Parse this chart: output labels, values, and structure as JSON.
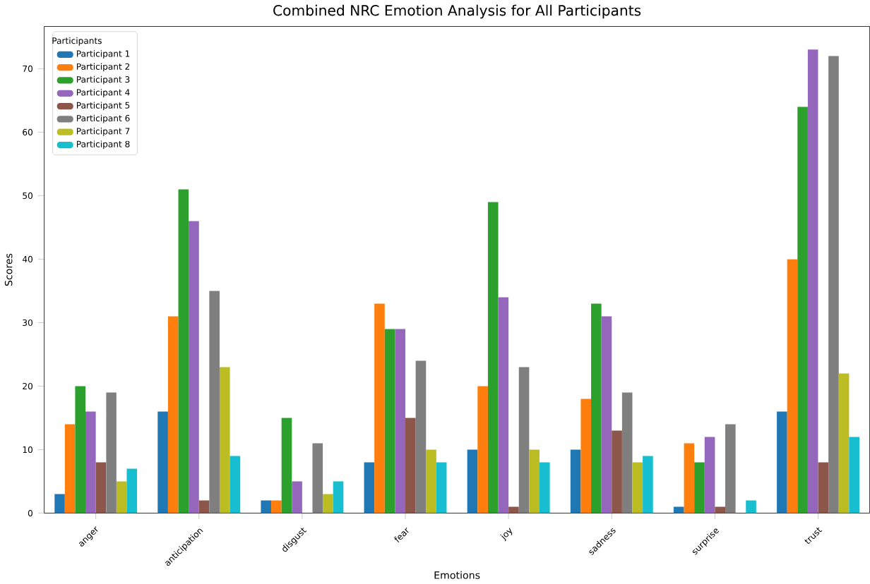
{
  "chart_data": {
    "type": "bar",
    "title": "Combined NRC Emotion Analysis for All Participants",
    "xlabel": "Emotions",
    "ylabel": "Scores",
    "legend_title": "Participants",
    "legend": "top left",
    "categories": [
      "anger",
      "anticipation",
      "disgust",
      "fear",
      "joy",
      "sadness",
      "surprise",
      "trust"
    ],
    "ylim": [
      0,
      76.65
    ],
    "yticks": [
      0,
      10,
      20,
      30,
      40,
      50,
      60,
      70
    ],
    "series": [
      {
        "name": "Participant 1",
        "color": "#1f77b4",
        "values": [
          3,
          16,
          2,
          8,
          10,
          10,
          1,
          16
        ]
      },
      {
        "name": "Participant 2",
        "color": "#ff7f0e",
        "values": [
          14,
          31,
          2,
          33,
          20,
          18,
          11,
          40
        ]
      },
      {
        "name": "Participant 3",
        "color": "#2ca02c",
        "values": [
          20,
          51,
          15,
          29,
          49,
          33,
          8,
          64
        ]
      },
      {
        "name": "Participant 4",
        "color": "#9467bd",
        "values": [
          16,
          46,
          5,
          29,
          34,
          31,
          12,
          73
        ]
      },
      {
        "name": "Participant 5",
        "color": "#8c564b",
        "values": [
          8,
          2,
          0,
          15,
          1,
          13,
          1,
          8
        ]
      },
      {
        "name": "Participant 6",
        "color": "#7f7f7f",
        "values": [
          19,
          35,
          11,
          24,
          23,
          19,
          14,
          72
        ]
      },
      {
        "name": "Participant 7",
        "color": "#bcbd22",
        "values": [
          5,
          23,
          3,
          10,
          10,
          8,
          0,
          22
        ]
      },
      {
        "name": "Participant 8",
        "color": "#17becf",
        "values": [
          7,
          9,
          5,
          8,
          8,
          9,
          2,
          12
        ]
      }
    ]
  }
}
